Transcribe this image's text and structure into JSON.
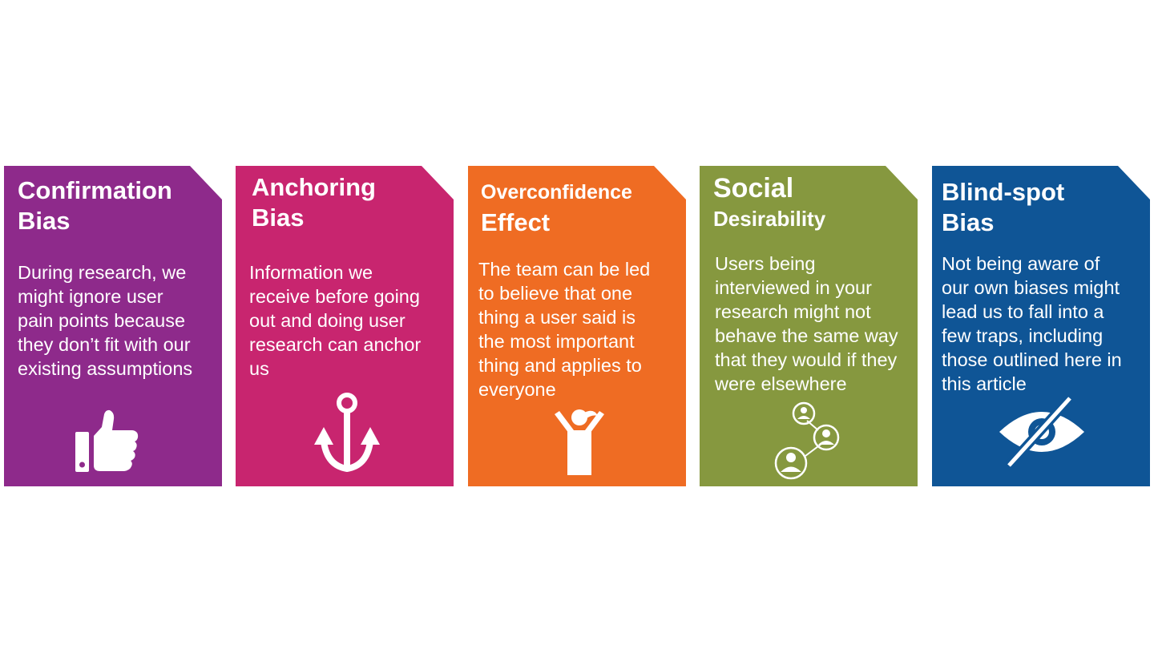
{
  "cards": [
    {
      "title_line1": "Confirmation",
      "title_line2": "Bias",
      "body_lines": [
        "During research, we",
        "might ignore user",
        "pain points because",
        "they don’t fit with our",
        "existing assumptions"
      ],
      "color": "#8e2a8b",
      "icon": "thumbs-up-icon"
    },
    {
      "title_line1": "Anchoring",
      "title_line2": "Bias",
      "body_lines": [
        "Information we",
        "receive before going",
        "out and doing user",
        "research can anchor",
        "us"
      ],
      "color": "#c8256f",
      "icon": "anchor-icon"
    },
    {
      "title_line1": "Overconfidence",
      "title_line2": "Effect",
      "body_lines": [
        "The team can be led",
        "to believe that one",
        "thing a user said is",
        "the most important",
        "thing and applies to",
        "everyone"
      ],
      "color": "#ef6c23",
      "icon": "cheering-person-icon"
    },
    {
      "title_line1": "Social",
      "title_line2": "Desirability",
      "body_lines": [
        "Users being",
        "interviewed in your",
        "research might not",
        "behave the same way",
        "that they would if they",
        "were elsewhere"
      ],
      "color": "#86983f",
      "icon": "social-network-icon"
    },
    {
      "title_line1": "Blind-spot",
      "title_line2": "Bias",
      "body_lines": [
        "Not being aware of",
        "our own biases might",
        "lead us to fall into a",
        "few traps, including",
        "those outlined here in",
        "this article"
      ],
      "color": "#0f5596",
      "icon": "eye-slash-icon"
    }
  ]
}
